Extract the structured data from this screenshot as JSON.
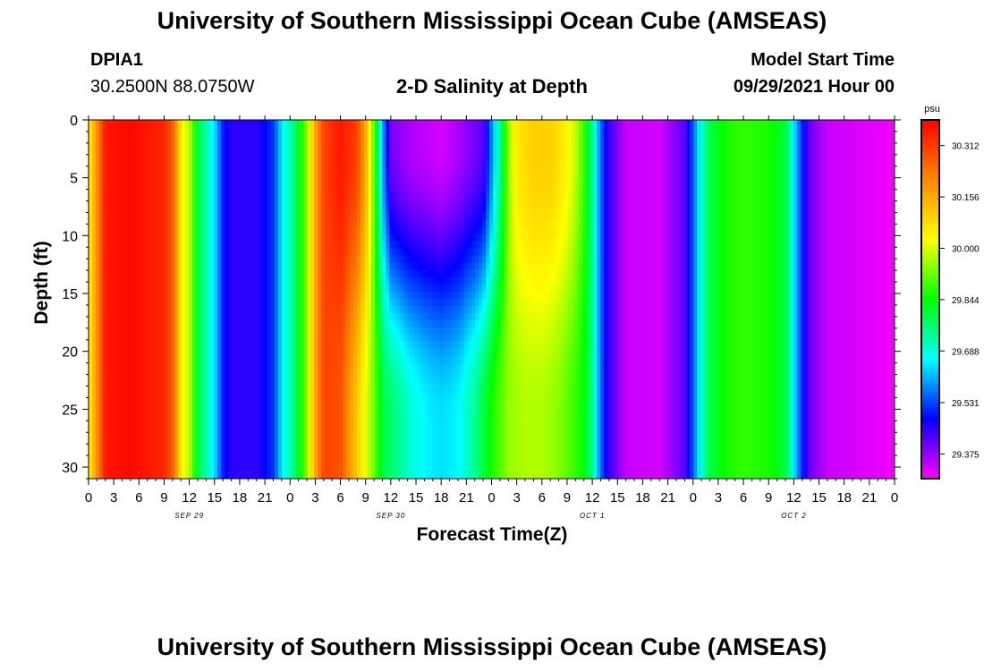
{
  "header": {
    "title_top": "University of Southern Mississippi Ocean Cube (AMSEAS)",
    "title_bottom": "University of Southern Mississippi Ocean Cube (AMSEAS)",
    "station_id": "DPIA1",
    "coords": "30.2500N  88.0750W",
    "chart_title": "2-D Salinity at Depth",
    "model_label": "Model Start Time",
    "model_time": "09/29/2021 Hour 00"
  },
  "chart_data": {
    "type": "heatmap",
    "title": "2-D Salinity at Depth",
    "xlabel": "Forecast Time(Z)",
    "ylabel": "Depth (ft)",
    "x_ticks": [
      "0",
      "3",
      "6",
      "9",
      "12",
      "15",
      "18",
      "21",
      "0",
      "3",
      "6",
      "9",
      "12",
      "15",
      "18",
      "21",
      "0",
      "3",
      "6",
      "9",
      "12",
      "15",
      "18",
      "21",
      "0",
      "3",
      "6",
      "9",
      "12",
      "15",
      "18",
      "21",
      "0"
    ],
    "date_labels": [
      {
        "label": "SEP 29",
        "hour": 12
      },
      {
        "label": "SEP 30",
        "hour": 36
      },
      {
        "label": "OCT 1",
        "hour": 60
      },
      {
        "label": "OCT 2",
        "hour": 84
      }
    ],
    "x_range_hours": [
      0,
      96
    ],
    "y_ticks": [
      "0",
      "5",
      "10",
      "15",
      "20",
      "25",
      "30"
    ],
    "ylim": [
      0,
      31
    ],
    "y_inverted": true,
    "colorbar": {
      "unit": "psu",
      "ticks": [
        "30.312",
        "30.156",
        "30.000",
        "29.844",
        "29.688",
        "29.531",
        "29.375"
      ],
      "range": [
        29.3,
        30.39
      ],
      "colors": [
        "#ff00ff",
        "#0000ff",
        "#00ffff",
        "#00ff00",
        "#ffff00",
        "#ff8800",
        "#ff0000"
      ]
    },
    "surface_salinity_by_hour": [
      [
        0,
        30.04
      ],
      [
        1,
        30.2
      ],
      [
        2,
        30.36
      ],
      [
        5,
        30.38
      ],
      [
        9,
        30.34
      ],
      [
        10,
        30.26
      ],
      [
        11,
        30.06
      ],
      [
        12,
        29.97
      ],
      [
        13,
        29.8
      ],
      [
        14,
        29.72
      ],
      [
        15,
        29.64
      ],
      [
        16,
        29.5
      ],
      [
        17,
        29.45
      ],
      [
        20,
        29.45
      ],
      [
        22,
        29.52
      ],
      [
        23,
        29.65
      ],
      [
        24,
        29.72
      ],
      [
        25,
        29.82
      ],
      [
        26,
        29.95
      ],
      [
        27,
        30.17
      ],
      [
        28,
        30.3
      ],
      [
        30,
        30.36
      ],
      [
        32,
        30.3
      ],
      [
        33,
        30.15
      ],
      [
        34,
        29.9
      ],
      [
        35,
        29.6
      ],
      [
        36,
        29.4
      ],
      [
        38,
        29.36
      ],
      [
        42,
        29.33
      ],
      [
        44,
        29.36
      ],
      [
        47,
        29.42
      ],
      [
        48,
        29.58
      ],
      [
        49,
        29.75
      ],
      [
        50,
        29.95
      ],
      [
        51,
        30.06
      ],
      [
        53,
        30.1
      ],
      [
        55,
        30.1
      ],
      [
        57,
        30.04
      ],
      [
        58,
        29.98
      ],
      [
        59,
        29.88
      ],
      [
        60,
        29.74
      ],
      [
        61,
        29.55
      ],
      [
        62,
        29.44
      ],
      [
        64,
        29.34
      ],
      [
        68,
        29.33
      ],
      [
        71,
        29.42
      ],
      [
        72,
        29.55
      ],
      [
        73,
        29.7
      ],
      [
        74,
        29.8
      ],
      [
        76,
        29.86
      ],
      [
        78,
        29.88
      ],
      [
        81,
        29.86
      ],
      [
        83,
        29.8
      ],
      [
        84,
        29.65
      ],
      [
        85,
        29.5
      ],
      [
        86,
        29.4
      ],
      [
        88,
        29.34
      ],
      [
        96,
        29.31
      ]
    ],
    "deep_salinity_by_hour": [
      [
        0,
        30.04
      ],
      [
        1,
        30.2
      ],
      [
        2,
        30.36
      ],
      [
        5,
        30.38
      ],
      [
        9,
        30.34
      ],
      [
        10,
        30.26
      ],
      [
        11,
        30.06
      ],
      [
        12,
        29.97
      ],
      [
        13,
        29.8
      ],
      [
        14,
        29.72
      ],
      [
        15,
        29.64
      ],
      [
        16,
        29.5
      ],
      [
        17,
        29.45
      ],
      [
        20,
        29.45
      ],
      [
        22,
        29.52
      ],
      [
        23,
        29.65
      ],
      [
        24,
        29.72
      ],
      [
        25,
        29.82
      ],
      [
        26,
        29.95
      ],
      [
        27,
        30.17
      ],
      [
        28,
        30.3
      ],
      [
        30,
        30.28
      ],
      [
        32,
        30.1
      ],
      [
        34,
        29.92
      ],
      [
        35,
        29.8
      ],
      [
        37,
        29.74
      ],
      [
        38,
        29.7
      ],
      [
        40,
        29.66
      ],
      [
        42,
        29.64
      ],
      [
        44,
        29.66
      ],
      [
        46,
        29.74
      ],
      [
        48,
        29.86
      ],
      [
        50,
        29.95
      ],
      [
        52,
        29.97
      ],
      [
        54,
        29.97
      ],
      [
        56,
        29.94
      ],
      [
        58,
        29.88
      ],
      [
        59,
        29.84
      ],
      [
        60,
        29.74
      ],
      [
        61,
        29.55
      ],
      [
        62,
        29.44
      ],
      [
        64,
        29.34
      ],
      [
        68,
        29.33
      ],
      [
        71,
        29.42
      ],
      [
        72,
        29.55
      ],
      [
        73,
        29.7
      ],
      [
        74,
        29.8
      ],
      [
        76,
        29.86
      ],
      [
        78,
        29.88
      ],
      [
        81,
        29.86
      ],
      [
        83,
        29.8
      ],
      [
        84,
        29.65
      ],
      [
        85,
        29.5
      ],
      [
        86,
        29.4
      ],
      [
        88,
        29.34
      ],
      [
        96,
        29.31
      ]
    ]
  }
}
